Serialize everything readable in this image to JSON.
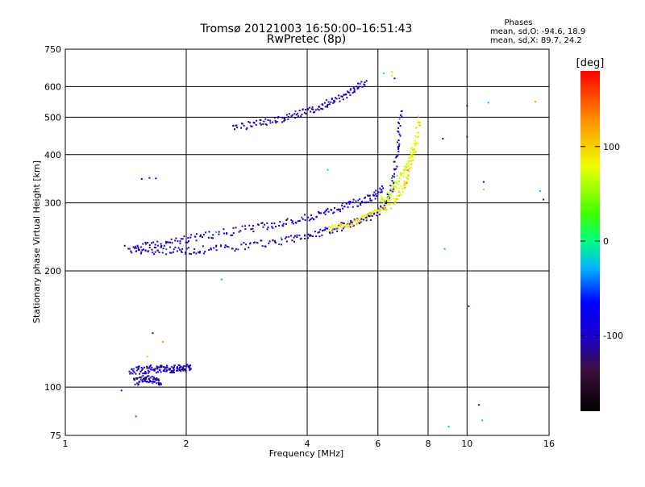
{
  "chart_data": {
    "type": "scatter",
    "title": "Tromsø 20121003 16:50:00–16:51:43",
    "subtitle": "RwPretec (8p)",
    "xlabel": "Frequency [MHz]",
    "ylabel": "Stationary phase Virtual Height [km]",
    "x_scale": "log",
    "y_scale": "log",
    "xlim": [
      1,
      16
    ],
    "ylim": [
      75,
      750
    ],
    "x_ticks": [
      {
        "value": 1,
        "label": "1"
      },
      {
        "value": 2,
        "label": "2"
      },
      {
        "value": 4,
        "label": "4"
      },
      {
        "value": 6,
        "label": "6"
      },
      {
        "value": 8,
        "label": "8"
      },
      {
        "value": 10,
        "label": "10"
      },
      {
        "value": 16,
        "label": "16"
      }
    ],
    "y_ticks": [
      {
        "value": 75,
        "label": "75"
      },
      {
        "value": 100,
        "label": "100"
      },
      {
        "value": 200,
        "label": "200"
      },
      {
        "value": 300,
        "label": "300"
      },
      {
        "value": 400,
        "label": "400"
      },
      {
        "value": 500,
        "label": "500"
      },
      {
        "value": 600,
        "label": "600"
      },
      {
        "value": 750,
        "label": "750"
      }
    ],
    "grid": true,
    "stats": {
      "heading": "Phases",
      "line_o": "mean, sd,O: -94.6, 18.9",
      "line_x": "mean, sd,X: 89.7, 24.2"
    },
    "colorbar": {
      "label": "[deg]",
      "range": [
        -180,
        180
      ],
      "ticks": [
        {
          "value": 100,
          "label": "100"
        },
        {
          "value": 0,
          "label": "0"
        },
        {
          "value": -100,
          "label": "-100"
        }
      ]
    },
    "traces": [
      {
        "x": [
          1.42,
          1.55,
          1.7,
          1.9,
          2.1,
          2.4,
          2.8,
          3.2,
          3.6,
          4.0,
          4.4,
          4.8,
          5.2,
          5.6,
          6.0,
          6.3,
          6.5,
          6.65,
          6.75,
          6.85
        ],
        "y": [
          228,
          226,
          226,
          225,
          226,
          228,
          232,
          236,
          241,
          247,
          253,
          259,
          266,
          274,
          284,
          300,
          330,
          380,
          440,
          520
        ],
        "phase": -100
      },
      {
        "x": [
          1.5,
          1.7,
          1.9,
          2.1,
          2.4,
          2.8,
          3.2,
          3.6,
          4.0,
          4.4,
          4.8,
          5.2,
          5.6,
          5.9,
          6.2
        ],
        "y": [
          230,
          235,
          240,
          244,
          250,
          256,
          262,
          268,
          275,
          282,
          290,
          298,
          306,
          315,
          325
        ],
        "phase": -95
      },
      {
        "x": [
          2.6,
          2.9,
          3.2,
          3.5,
          3.8,
          4.1,
          4.4,
          4.7,
          5.0,
          5.3,
          5.6
        ],
        "y": [
          470,
          478,
          488,
          498,
          510,
          522,
          536,
          552,
          570,
          592,
          615
        ],
        "phase": -100
      },
      {
        "x": [
          4.5,
          4.8,
          5.1,
          5.4,
          5.7,
          6.0,
          6.3,
          6.6,
          6.9,
          7.1,
          7.3,
          7.5,
          7.6
        ],
        "y": [
          258,
          262,
          266,
          270,
          276,
          283,
          292,
          305,
          325,
          350,
          390,
          440,
          500
        ],
        "phase": 90
      },
      {
        "x": [
          6.1,
          6.4,
          6.7,
          7.0,
          7.2,
          7.4
        ],
        "y": [
          300,
          318,
          340,
          365,
          392,
          420
        ],
        "phase": 70
      },
      {
        "x": [
          1.45,
          1.52,
          1.58,
          1.64,
          1.7,
          1.76,
          1.82,
          1.88,
          1.94,
          2.0,
          2.05
        ],
        "y": [
          110,
          111,
          110,
          112,
          111,
          112,
          111,
          112,
          112,
          112,
          112
        ],
        "phase": -105
      },
      {
        "x": [
          1.48,
          1.53,
          1.58,
          1.62,
          1.68,
          1.72
        ],
        "y": [
          103,
          104,
          106,
          105,
          104,
          103
        ],
        "phase": -110
      }
    ],
    "points": [
      {
        "x": 1.55,
        "y": 346,
        "phase": -100
      },
      {
        "x": 1.68,
        "y": 347,
        "phase": -100
      },
      {
        "x": 1.62,
        "y": 348,
        "phase": -100
      },
      {
        "x": 1.65,
        "y": 138,
        "phase": -120
      },
      {
        "x": 1.75,
        "y": 131,
        "phase": 130
      },
      {
        "x": 1.5,
        "y": 84,
        "phase": 175
      },
      {
        "x": 1.38,
        "y": 98,
        "phase": -100
      },
      {
        "x": 1.6,
        "y": 120,
        "phase": 40
      },
      {
        "x": 2.45,
        "y": 190,
        "phase": -30
      },
      {
        "x": 4.5,
        "y": 365,
        "phase": -10
      },
      {
        "x": 6.2,
        "y": 650,
        "phase": -10
      },
      {
        "x": 6.5,
        "y": 640,
        "phase": 90
      },
      {
        "x": 6.5,
        "y": 655,
        "phase": 60
      },
      {
        "x": 6.6,
        "y": 630,
        "phase": -100
      },
      {
        "x": 8.7,
        "y": 440,
        "phase": -100
      },
      {
        "x": 8.8,
        "y": 228,
        "phase": -30
      },
      {
        "x": 9.0,
        "y": 79,
        "phase": -30
      },
      {
        "x": 10.0,
        "y": 535,
        "phase": -100
      },
      {
        "x": 10.0,
        "y": 445,
        "phase": -100
      },
      {
        "x": 10.1,
        "y": 162,
        "phase": -100
      },
      {
        "x": 10.7,
        "y": 90,
        "phase": -100
      },
      {
        "x": 10.9,
        "y": 82,
        "phase": -30
      },
      {
        "x": 11.0,
        "y": 340,
        "phase": -100
      },
      {
        "x": 11.0,
        "y": 325,
        "phase": 110
      },
      {
        "x": 11.3,
        "y": 545,
        "phase": -30
      },
      {
        "x": 14.8,
        "y": 548,
        "phase": 130
      },
      {
        "x": 15.2,
        "y": 322,
        "phase": -30
      },
      {
        "x": 15.5,
        "y": 306,
        "phase": -120
      }
    ]
  }
}
